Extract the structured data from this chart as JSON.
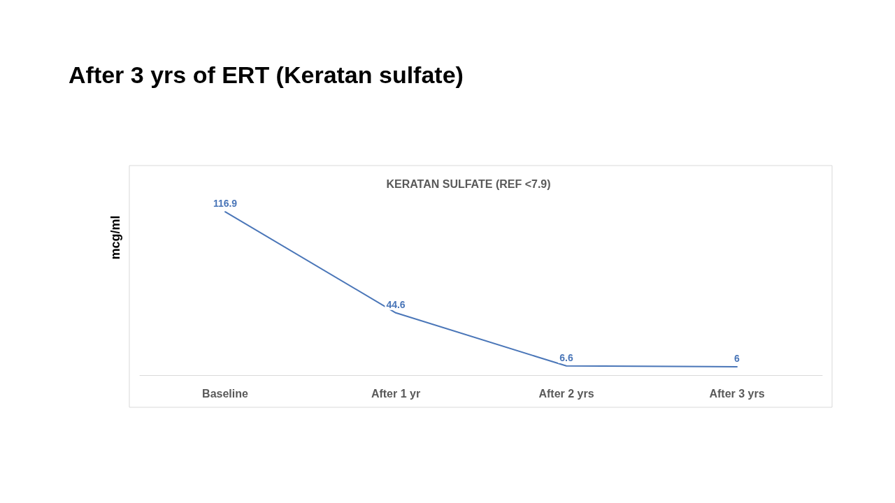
{
  "chart_data": {
    "type": "line",
    "title": "After 3 yrs of ERT (Keratan sulfate)",
    "subtitle": "KERATAN SULFATE (REF <7.9)",
    "ylabel": "mcg/ml",
    "categories": [
      "Baseline",
      "After 1 yr",
      "After 2 yrs",
      "After 3 yrs"
    ],
    "series": [
      {
        "color": "#4a76b8",
        "values": [
          116.9,
          44.6,
          6.6,
          6
        ]
      }
    ],
    "data_labels": true,
    "marker": "none",
    "line_style": "solid",
    "grid": false
  }
}
